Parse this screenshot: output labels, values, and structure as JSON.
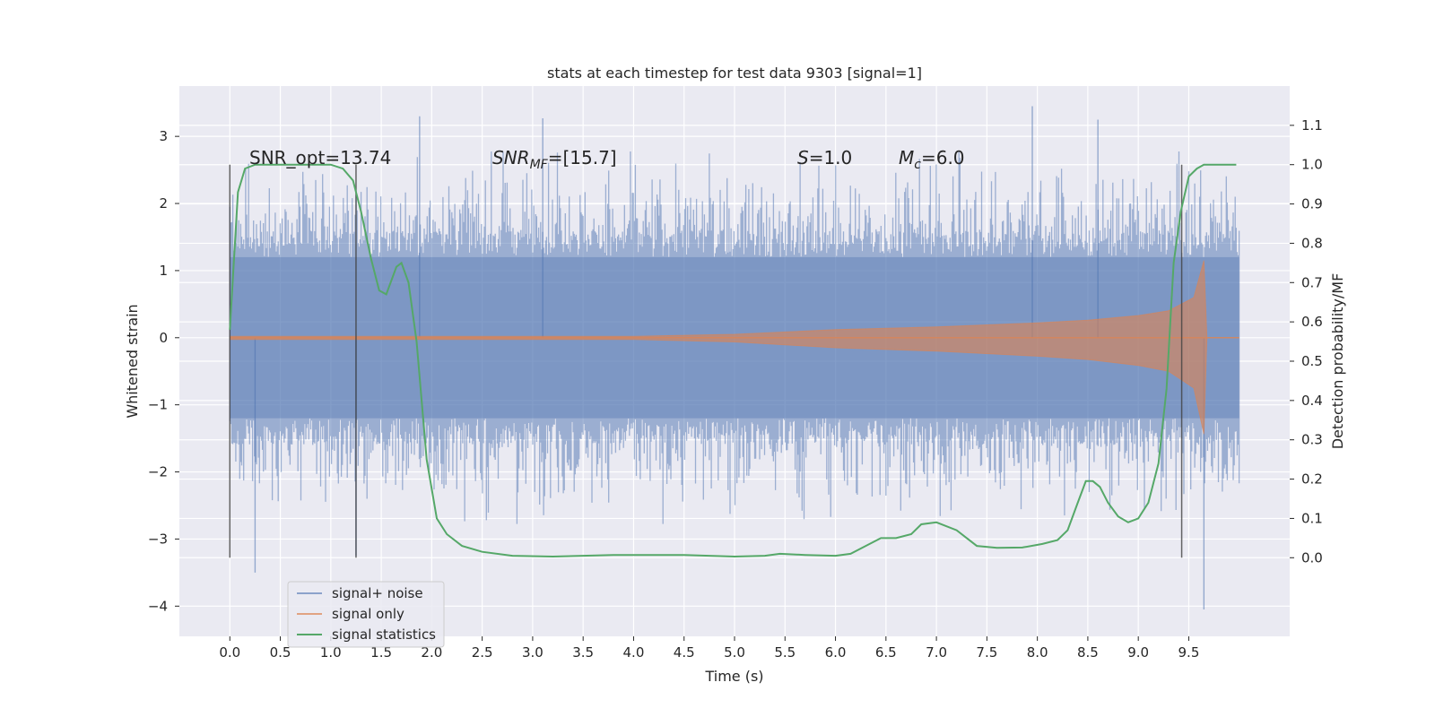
{
  "chart_data": {
    "type": "line",
    "title": "stats at each timestep for test data 9303 [signal=1]",
    "xlabel": "Time (s)",
    "ylabel_left": "Whitened strain",
    "ylabel_right": "Detection probability/MF",
    "xlim": [
      -0.5,
      10.5
    ],
    "ylim_left": [
      -4.45,
      3.75
    ],
    "ylim_right": [
      -0.2,
      1.2
    ],
    "xticks": [
      "0.0",
      "0.5",
      "1.0",
      "1.5",
      "2.0",
      "2.5",
      "3.0",
      "3.5",
      "4.0",
      "4.5",
      "5.0",
      "5.5",
      "6.0",
      "6.5",
      "7.0",
      "7.5",
      "8.0",
      "8.5",
      "9.0",
      "9.5"
    ],
    "yticks_left": [
      "3",
      "2",
      "1",
      "0",
      "−1",
      "−2",
      "−3",
      "−4"
    ],
    "yticks_right": [
      "1.1",
      "1.0",
      "0.9",
      "0.8",
      "0.7",
      "0.6",
      "0.5",
      "0.4",
      "0.3",
      "0.2",
      "0.1",
      "0.0"
    ],
    "grid": true,
    "legend_position": "lower-left",
    "annotations": {
      "snr_opt": "SNR_opt=13.74",
      "snr_mf_main": "SNR",
      "snr_mf_sub": "MF",
      "snr_mf_value": "=[15.7]",
      "s_var": "S",
      "s_value": "=1.0",
      "mc_var": "M",
      "mc_sub": "c",
      "mc_value": "=6.0"
    },
    "vertical_markers": [
      0.0,
      1.25,
      9.43
    ],
    "series": [
      {
        "name": "signal+ noise",
        "axis": "left",
        "color": "#4c72b0",
        "style": "noise band",
        "x_range": [
          0.0,
          10.0
        ],
        "typical_range": [
          -1.5,
          1.5
        ],
        "spikes": [
          [
            1.88,
            3.3
          ],
          [
            3.1,
            3.27
          ],
          [
            7.95,
            3.45
          ],
          [
            8.6,
            3.25
          ],
          [
            0.25,
            -3.5
          ],
          [
            9.65,
            -4.05
          ],
          [
            1.25,
            -3.25
          ]
        ]
      },
      {
        "name": "signal only",
        "axis": "left",
        "color": "#dd8452",
        "style": "chirp",
        "x": [
          0.0,
          4.0,
          5.0,
          6.0,
          7.0,
          8.0,
          8.5,
          9.0,
          9.3,
          9.55,
          9.65,
          9.68,
          10.0
        ],
        "envelope": [
          0.02,
          0.02,
          0.05,
          0.12,
          0.16,
          0.22,
          0.26,
          0.33,
          0.4,
          0.6,
          1.15,
          0.0,
          0.0
        ]
      },
      {
        "name": "signal statistics",
        "axis": "right",
        "color": "#55a868",
        "x": [
          0.0,
          0.08,
          0.15,
          0.25,
          0.5,
          0.8,
          1.0,
          1.12,
          1.22,
          1.3,
          1.4,
          1.48,
          1.55,
          1.65,
          1.7,
          1.77,
          1.85,
          1.95,
          2.05,
          2.15,
          2.3,
          2.5,
          2.8,
          3.2,
          3.8,
          4.5,
          5.0,
          5.3,
          5.45,
          5.7,
          6.0,
          6.15,
          6.3,
          6.45,
          6.6,
          6.75,
          6.85,
          7.0,
          7.2,
          7.4,
          7.6,
          7.85,
          8.05,
          8.2,
          8.3,
          8.4,
          8.48,
          8.55,
          8.62,
          8.7,
          8.8,
          8.9,
          9.0,
          9.1,
          9.2,
          9.28,
          9.35,
          9.42,
          9.5,
          9.58,
          9.65,
          9.75,
          9.9,
          9.97
        ],
        "y": [
          0.58,
          0.93,
          0.99,
          1.0,
          1.0,
          1.0,
          1.0,
          0.99,
          0.96,
          0.88,
          0.76,
          0.68,
          0.67,
          0.74,
          0.75,
          0.7,
          0.55,
          0.25,
          0.1,
          0.06,
          0.03,
          0.015,
          0.005,
          0.003,
          0.007,
          0.007,
          0.003,
          0.005,
          0.01,
          0.007,
          0.005,
          0.01,
          0.03,
          0.05,
          0.05,
          0.06,
          0.085,
          0.09,
          0.07,
          0.03,
          0.025,
          0.026,
          0.035,
          0.045,
          0.07,
          0.14,
          0.195,
          0.195,
          0.18,
          0.14,
          0.105,
          0.09,
          0.1,
          0.14,
          0.24,
          0.43,
          0.75,
          0.88,
          0.97,
          0.99,
          1.0,
          1.0,
          1.0,
          1.0
        ]
      }
    ]
  }
}
